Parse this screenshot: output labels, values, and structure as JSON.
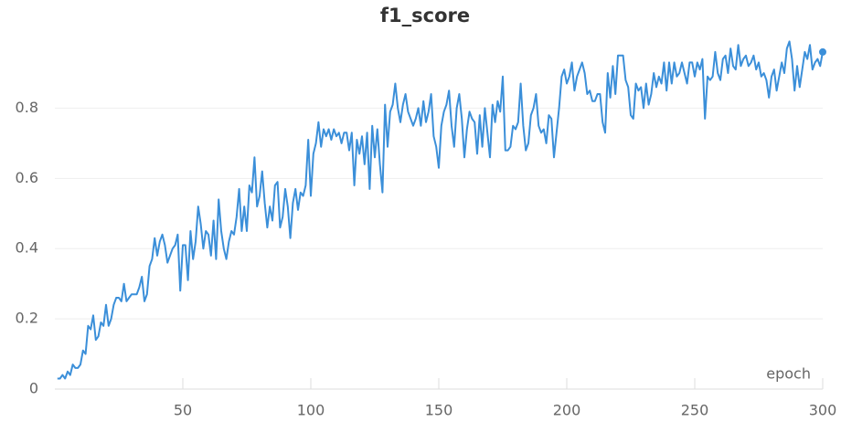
{
  "chart_data": {
    "type": "line",
    "title": "f1_score",
    "x_label": "epoch",
    "x": [
      1,
      2,
      3,
      4,
      5,
      6,
      7,
      8,
      9,
      10,
      11,
      12,
      13,
      14,
      15,
      16,
      17,
      18,
      19,
      20,
      21,
      22,
      23,
      24,
      25,
      26,
      27,
      28,
      29,
      30,
      31,
      32,
      33,
      34,
      35,
      36,
      37,
      38,
      39,
      40,
      41,
      42,
      43,
      44,
      45,
      46,
      47,
      48,
      49,
      50,
      51,
      52,
      53,
      54,
      55,
      56,
      57,
      58,
      59,
      60,
      61,
      62,
      63,
      64,
      65,
      66,
      67,
      68,
      69,
      70,
      71,
      72,
      73,
      74,
      75,
      76,
      77,
      78,
      79,
      80,
      81,
      82,
      83,
      84,
      85,
      86,
      87,
      88,
      89,
      90,
      91,
      92,
      93,
      94,
      95,
      96,
      97,
      98,
      99,
      100,
      101,
      102,
      103,
      104,
      105,
      106,
      107,
      108,
      109,
      110,
      111,
      112,
      113,
      114,
      115,
      116,
      117,
      118,
      119,
      120,
      121,
      122,
      123,
      124,
      125,
      126,
      127,
      128,
      129,
      130,
      131,
      132,
      133,
      134,
      135,
      136,
      137,
      138,
      139,
      140,
      141,
      142,
      143,
      144,
      145,
      146,
      147,
      148,
      149,
      150,
      151,
      152,
      153,
      154,
      155,
      156,
      157,
      158,
      159,
      160,
      161,
      162,
      163,
      164,
      165,
      166,
      167,
      168,
      169,
      170,
      171,
      172,
      173,
      174,
      175,
      176,
      177,
      178,
      179,
      180,
      181,
      182,
      183,
      184,
      185,
      186,
      187,
      188,
      189,
      190,
      191,
      192,
      193,
      194,
      195,
      196,
      197,
      198,
      199,
      200,
      201,
      202,
      203,
      204,
      205,
      206,
      207,
      208,
      209,
      210,
      211,
      212,
      213,
      214,
      215,
      216,
      217,
      218,
      219,
      220,
      221,
      222,
      223,
      224,
      225,
      226,
      227,
      228,
      229,
      230,
      231,
      232,
      233,
      234,
      235,
      236,
      237,
      238,
      239,
      240,
      241,
      242,
      243,
      244,
      245,
      246,
      247,
      248,
      249,
      250,
      251,
      252,
      253,
      254,
      255,
      256,
      257,
      258,
      259,
      260,
      261,
      262,
      263,
      264,
      265,
      266,
      267,
      268,
      269,
      270,
      271,
      272,
      273,
      274,
      275,
      276,
      277,
      278,
      279,
      280,
      281,
      282,
      283,
      284,
      285,
      286,
      287,
      288,
      289,
      290,
      291,
      292,
      293,
      294,
      295,
      296,
      297,
      298,
      299,
      300
    ],
    "series": [
      {
        "name": "f1_score",
        "color": "#3b8fd9",
        "values": [
          0.03,
          0.03,
          0.04,
          0.03,
          0.05,
          0.04,
          0.07,
          0.06,
          0.06,
          0.07,
          0.11,
          0.1,
          0.18,
          0.17,
          0.21,
          0.14,
          0.15,
          0.19,
          0.18,
          0.24,
          0.18,
          0.2,
          0.24,
          0.26,
          0.26,
          0.25,
          0.3,
          0.25,
          0.26,
          0.27,
          0.27,
          0.27,
          0.29,
          0.32,
          0.25,
          0.27,
          0.35,
          0.37,
          0.43,
          0.38,
          0.42,
          0.44,
          0.41,
          0.36,
          0.38,
          0.4,
          0.41,
          0.44,
          0.28,
          0.41,
          0.41,
          0.31,
          0.45,
          0.37,
          0.42,
          0.52,
          0.47,
          0.4,
          0.45,
          0.44,
          0.38,
          0.48,
          0.37,
          0.54,
          0.45,
          0.4,
          0.37,
          0.42,
          0.45,
          0.44,
          0.49,
          0.57,
          0.45,
          0.52,
          0.45,
          0.58,
          0.56,
          0.66,
          0.52,
          0.55,
          0.62,
          0.53,
          0.46,
          0.52,
          0.48,
          0.58,
          0.59,
          0.46,
          0.49,
          0.57,
          0.52,
          0.43,
          0.53,
          0.57,
          0.51,
          0.56,
          0.55,
          0.58,
          0.71,
          0.55,
          0.67,
          0.7,
          0.76,
          0.69,
          0.74,
          0.72,
          0.74,
          0.71,
          0.74,
          0.72,
          0.73,
          0.7,
          0.73,
          0.73,
          0.68,
          0.73,
          0.58,
          0.71,
          0.67,
          0.72,
          0.64,
          0.73,
          0.57,
          0.75,
          0.66,
          0.74,
          0.64,
          0.56,
          0.81,
          0.69,
          0.79,
          0.81,
          0.87,
          0.8,
          0.76,
          0.81,
          0.84,
          0.79,
          0.77,
          0.75,
          0.77,
          0.8,
          0.75,
          0.82,
          0.76,
          0.79,
          0.84,
          0.72,
          0.69,
          0.63,
          0.75,
          0.79,
          0.81,
          0.85,
          0.75,
          0.69,
          0.8,
          0.84,
          0.77,
          0.66,
          0.74,
          0.79,
          0.77,
          0.76,
          0.67,
          0.78,
          0.69,
          0.8,
          0.73,
          0.66,
          0.81,
          0.76,
          0.82,
          0.79,
          0.89,
          0.68,
          0.68,
          0.69,
          0.75,
          0.74,
          0.76,
          0.87,
          0.75,
          0.68,
          0.7,
          0.78,
          0.8,
          0.84,
          0.75,
          0.73,
          0.74,
          0.7,
          0.78,
          0.77,
          0.66,
          0.73,
          0.8,
          0.89,
          0.91,
          0.87,
          0.89,
          0.93,
          0.85,
          0.89,
          0.91,
          0.93,
          0.9,
          0.84,
          0.85,
          0.82,
          0.82,
          0.84,
          0.84,
          0.76,
          0.73,
          0.9,
          0.83,
          0.92,
          0.84,
          0.95,
          0.95,
          0.95,
          0.88,
          0.86,
          0.78,
          0.77,
          0.87,
          0.85,
          0.86,
          0.8,
          0.87,
          0.81,
          0.84,
          0.9,
          0.86,
          0.89,
          0.87,
          0.93,
          0.85,
          0.93,
          0.87,
          0.93,
          0.89,
          0.9,
          0.93,
          0.9,
          0.87,
          0.93,
          0.93,
          0.89,
          0.93,
          0.91,
          0.94,
          0.77,
          0.89,
          0.88,
          0.89,
          0.96,
          0.9,
          0.88,
          0.94,
          0.95,
          0.9,
          0.97,
          0.92,
          0.91,
          0.98,
          0.92,
          0.94,
          0.95,
          0.92,
          0.93,
          0.95,
          0.91,
          0.93,
          0.89,
          0.9,
          0.88,
          0.83,
          0.89,
          0.91,
          0.85,
          0.89,
          0.93,
          0.9,
          0.97,
          0.99,
          0.94,
          0.85,
          0.92,
          0.86,
          0.91,
          0.96,
          0.94,
          0.98,
          0.91,
          0.93,
          0.94,
          0.92,
          0.96
        ]
      }
    ],
    "xlim": [
      0,
      300
    ],
    "xticks": [
      50,
      100,
      150,
      200,
      250,
      300
    ],
    "ylim": [
      0,
      1.03
    ],
    "yticks": [
      0,
      0.2,
      0.4,
      0.6,
      0.8
    ],
    "grid": true
  }
}
